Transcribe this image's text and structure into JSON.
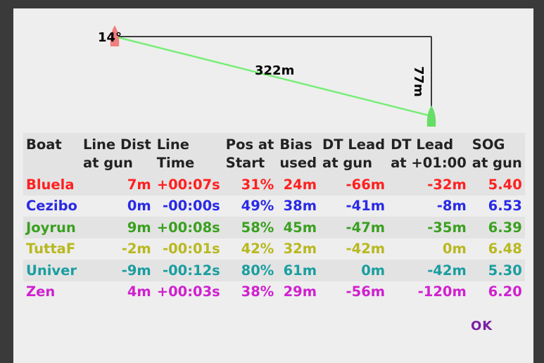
{
  "diagram": {
    "angle_label": "14°",
    "line_distance_label": "322m",
    "perpendicular_label": "77m",
    "pin_color": "#f08080",
    "boat_color": "#66dd66",
    "line_color": "#77ee77"
  },
  "table": {
    "headers": [
      [
        "Boat",
        ""
      ],
      [
        "Line Dist",
        "at gun"
      ],
      [
        "Line",
        "Time"
      ],
      [
        "Pos at",
        "Start"
      ],
      [
        "Bias",
        "used"
      ],
      [
        "DT Lead",
        "at gun"
      ],
      [
        "DT Lead",
        "at +01:00"
      ],
      [
        "SOG",
        "at gun"
      ]
    ],
    "rows": [
      {
        "color": "#ff2020",
        "cells": [
          "Bluela",
          "7m",
          "+00:07s",
          "31%",
          "24m",
          "-66m",
          "-32m",
          "5.40"
        ]
      },
      {
        "color": "#2a2ae6",
        "cells": [
          "Cezibo",
          "0m",
          "-00:00s",
          "49%",
          "38m",
          "-41m",
          "-8m",
          "6.53"
        ]
      },
      {
        "color": "#3aa020",
        "cells": [
          "Joyrun",
          "9m",
          "+00:08s",
          "58%",
          "45m",
          "-47m",
          "-35m",
          "6.39"
        ]
      },
      {
        "color": "#b8b820",
        "cells": [
          "TuttaF",
          "-2m",
          "-00:01s",
          "42%",
          "32m",
          "-42m",
          "0m",
          "6.48"
        ]
      },
      {
        "color": "#1a9ea0",
        "cells": [
          "Univer",
          "-9m",
          "-00:12s",
          "80%",
          "61m",
          "0m",
          "-42m",
          "5.30"
        ]
      },
      {
        "color": "#d020d0",
        "cells": [
          "Zen",
          "4m",
          "+00:03s",
          "38%",
          "29m",
          "-56m",
          "-120m",
          "6.20"
        ]
      }
    ]
  },
  "ok_label": "OK"
}
